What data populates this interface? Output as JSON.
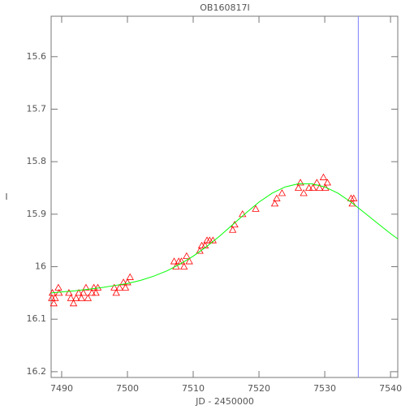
{
  "chart_data": {
    "type": "scatter",
    "title": "OB160817I",
    "x_label": "JD - 2450000",
    "y_label": "I",
    "xlim": [
      7488.4,
      7541.1
    ],
    "ylim": [
      16.211,
      15.523
    ],
    "xticks": [
      7490,
      7500,
      7510,
      7520,
      7530,
      7540
    ],
    "yticks": [
      15.6,
      15.7,
      15.8,
      15.9,
      16.0,
      16.1,
      16.2
    ],
    "points": {
      "color": "#ff0000",
      "x": [
        7488.5,
        7488.6,
        7488.8,
        7489.0,
        7489.5,
        7489.6,
        7491.1,
        7491.4,
        7491.8,
        7492.2,
        7492.6,
        7493.0,
        7493.3,
        7493.7,
        7494.0,
        7494.6,
        7494.9,
        7495.2,
        7495.5,
        7498.0,
        7498.3,
        7498.8,
        7499.4,
        7499.7,
        7500.0,
        7500.4,
        7507.1,
        7507.4,
        7507.8,
        7508.2,
        7508.6,
        7509.0,
        7509.4,
        7511.0,
        7511.3,
        7511.8,
        7512.1,
        7512.5,
        7513.0,
        7516.0,
        7516.3,
        7517.5,
        7519.5,
        7522.4,
        7522.7,
        7523.5,
        7526.0,
        7526.3,
        7526.8,
        7527.6,
        7528.2,
        7528.8,
        7529.2,
        7529.8,
        7530.1,
        7530.4,
        7534.0,
        7534.2,
        7534.4
      ],
      "values": [
        16.06,
        16.05,
        16.07,
        16.06,
        16.04,
        16.05,
        16.05,
        16.06,
        16.07,
        16.06,
        16.05,
        16.06,
        16.05,
        16.04,
        16.06,
        16.05,
        16.04,
        16.05,
        16.04,
        16.04,
        16.05,
        16.04,
        16.03,
        16.04,
        16.03,
        16.02,
        15.99,
        16.0,
        15.99,
        15.99,
        16.0,
        15.98,
        15.99,
        15.97,
        15.96,
        15.96,
        15.95,
        15.95,
        15.95,
        15.93,
        15.92,
        15.9,
        15.89,
        15.88,
        15.87,
        15.86,
        15.85,
        15.84,
        15.86,
        15.85,
        15.85,
        15.84,
        15.85,
        15.83,
        15.85,
        15.84,
        15.87,
        15.88,
        15.87
      ]
    },
    "model": {
      "color": "#00ff00",
      "x": [
        7488.4,
        7490,
        7492,
        7494,
        7496,
        7498,
        7500,
        7502,
        7504,
        7506,
        7508,
        7510,
        7512,
        7514,
        7516,
        7518,
        7520,
        7522,
        7524,
        7526,
        7528,
        7530,
        7532,
        7534,
        7536,
        7538,
        7540,
        7541.1
      ],
      "values": [
        16.05,
        16.048,
        16.046,
        16.043,
        16.04,
        16.036,
        16.032,
        16.026,
        16.018,
        16.008,
        15.995,
        15.98,
        15.962,
        15.942,
        15.92,
        15.898,
        15.877,
        15.86,
        15.848,
        15.842,
        15.842,
        15.848,
        15.86,
        15.877,
        15.897,
        15.917,
        15.937,
        15.947
      ]
    },
    "vline": {
      "x": 7535.1,
      "color": "#8080ff"
    }
  }
}
